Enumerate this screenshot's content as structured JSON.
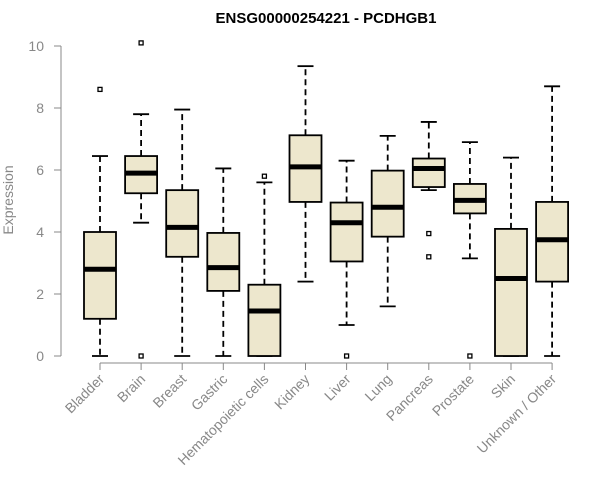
{
  "chart_data": {
    "type": "boxplot",
    "title": "ENSG00000254221 - PCDHGB1",
    "xlabel": "",
    "ylabel": "Expression",
    "ylim": [
      0,
      10
    ],
    "yticks": [
      0,
      2,
      4,
      6,
      8,
      10
    ],
    "colors": {
      "box_fill": "#ede7cd",
      "axis": "#888888"
    },
    "categories": [
      "Bladder",
      "Brain",
      "Breast",
      "Gastric",
      "Hematopoietic cells",
      "Kidney",
      "Liver",
      "Lung",
      "Pancreas",
      "Prostate",
      "Skin",
      "Unknown / Other"
    ],
    "boxes": [
      {
        "min": 0.0,
        "q1": 1.2,
        "median": 2.8,
        "q3": 4.0,
        "max": 6.45,
        "outliers": [
          8.6
        ]
      },
      {
        "min": 4.3,
        "q1": 5.25,
        "median": 5.9,
        "q3": 6.45,
        "max": 7.8,
        "outliers": [
          10.1,
          0.0
        ]
      },
      {
        "min": 0.0,
        "q1": 3.2,
        "median": 4.15,
        "q3": 5.35,
        "max": 7.95,
        "outliers": []
      },
      {
        "min": 0.0,
        "q1": 2.1,
        "median": 2.85,
        "q3": 3.97,
        "max": 6.05,
        "outliers": []
      },
      {
        "min": 0.0,
        "q1": 0.0,
        "median": 1.45,
        "q3": 2.3,
        "max": 5.6,
        "outliers": [
          5.8
        ]
      },
      {
        "min": 2.4,
        "q1": 4.97,
        "median": 6.1,
        "q3": 7.12,
        "max": 9.35,
        "outliers": []
      },
      {
        "min": 1.0,
        "q1": 3.05,
        "median": 4.3,
        "q3": 4.95,
        "max": 6.3,
        "outliers": [
          0.0
        ]
      },
      {
        "min": 1.6,
        "q1": 3.85,
        "median": 4.8,
        "q3": 5.98,
        "max": 7.1,
        "outliers": []
      },
      {
        "min": 5.35,
        "q1": 5.45,
        "median": 6.05,
        "q3": 6.37,
        "max": 7.55,
        "outliers": [
          3.95,
          3.2
        ]
      },
      {
        "min": 3.15,
        "q1": 4.6,
        "median": 5.02,
        "q3": 5.55,
        "max": 6.9,
        "outliers": [
          0.0
        ]
      },
      {
        "min": 0.0,
        "q1": 0.0,
        "median": 2.5,
        "q3": 4.1,
        "max": 6.4,
        "outliers": []
      },
      {
        "min": 0.0,
        "q1": 2.4,
        "median": 3.75,
        "q3": 4.97,
        "max": 8.7,
        "outliers": []
      }
    ]
  }
}
